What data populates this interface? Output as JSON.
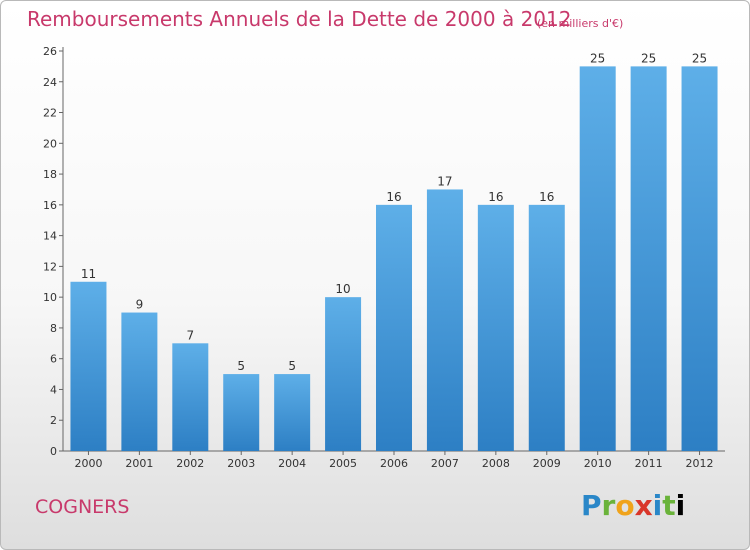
{
  "title": "Remboursements Annuels de la Dette de 2000 à 2012",
  "unit_note": "(en milliers d'€)",
  "commune": "COGNERS",
  "logo_text": "Proxiti",
  "colors": {
    "title": "#c8396b",
    "bar_top": "#5eafe8",
    "bar_bottom": "#2d7fc4"
  },
  "chart_data": {
    "type": "bar",
    "title": "Remboursements Annuels de la Dette de 2000 à 2012",
    "xlabel": "",
    "ylabel": "",
    "categories": [
      "2000",
      "2001",
      "2002",
      "2003",
      "2004",
      "2005",
      "2006",
      "2007",
      "2008",
      "2009",
      "2010",
      "2011",
      "2012"
    ],
    "values": [
      11,
      9,
      7,
      5,
      5,
      10,
      16,
      17,
      16,
      16,
      25,
      25,
      25
    ],
    "ylim": [
      0,
      26
    ],
    "yticks": [
      0,
      2,
      4,
      6,
      8,
      10,
      12,
      14,
      16,
      18,
      20,
      22,
      24,
      26
    ],
    "grid": false,
    "legend": "none"
  }
}
